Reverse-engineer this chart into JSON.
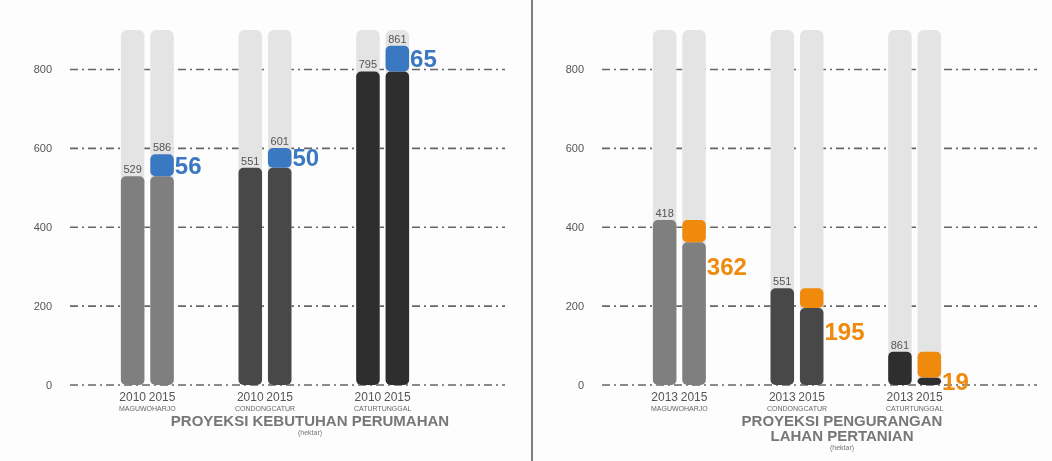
{
  "chart_data": [
    {
      "type": "bar",
      "stacked": true,
      "title": "PROYEKSI KEBUTUHAN PERUMAHAN",
      "subtitle": "(hektar)",
      "categories": [
        "2010",
        "2015",
        null,
        null,
        "2010",
        "2015",
        null,
        null,
        "2010",
        "2015"
      ],
      "series": [
        {
          "colors": [
            "#7f7f7f",
            "#7f7f7f",
            null,
            null,
            "#484848",
            "#484848",
            null,
            null,
            "#2e2e2e",
            "#2e2e2e"
          ],
          "values": [
            529,
            529,
            null,
            null,
            551,
            551,
            null,
            null,
            795,
            795
          ],
          "value_labels": [
            "529",
            null,
            null,
            null,
            "551",
            null,
            null,
            null,
            "795",
            null
          ]
        },
        {
          "color": "#3a78c2",
          "values": [
            null,
            56,
            null,
            null,
            null,
            50,
            null,
            null,
            null,
            65
          ],
          "value_labels": [
            null,
            "56",
            null,
            null,
            null,
            "50",
            null,
            null,
            null,
            "65"
          ]
        }
      ],
      "totals": [
        null,
        "586",
        null,
        null,
        null,
        "601",
        null,
        null,
        null,
        "861"
      ],
      "annotations": [
        "MAGUWOHARJO",
        "CONDONGCATUR",
        "CATURTUNGGAL"
      ],
      "ylim": [
        0,
        900
      ],
      "yticks": [
        0,
        200,
        400,
        600,
        800
      ],
      "grid": "y"
    },
    {
      "type": "bar",
      "stacked": true,
      "title": "PROYEKSI PENGURANGAN LAHAN PERTANIAN",
      "subtitle": "(hektar)",
      "categories": [
        "2013",
        "2015",
        null,
        null,
        "2013",
        "2015",
        null,
        null,
        "2013",
        "2015"
      ],
      "series": [
        {
          "colors": [
            "#7f7f7f",
            "#7f7f7f",
            null,
            null,
            "#484848",
            "#484848",
            null,
            null,
            "#2e2e2e",
            "#2e2e2e"
          ],
          "values": [
            418,
            362,
            null,
            null,
            245,
            195,
            null,
            null,
            84,
            19
          ],
          "value_labels": [
            "418",
            "362",
            null,
            null,
            null,
            "195",
            null,
            null,
            null,
            "19"
          ]
        },
        {
          "color": "#f08a0c",
          "values": [
            null,
            56,
            null,
            null,
            null,
            50,
            null,
            null,
            null,
            65
          ]
        }
      ],
      "annotations": [
        "MAGUWOHARJO",
        "CONDONGCATUR",
        "CATURTUNGGAL",
        {
          "text": "551",
          "y": 245
        },
        {
          "text": "861",
          "y": 84
        }
      ],
      "ylim": [
        0,
        900
      ],
      "yticks": [
        0,
        200,
        400,
        600,
        800
      ],
      "grid": "y"
    }
  ]
}
